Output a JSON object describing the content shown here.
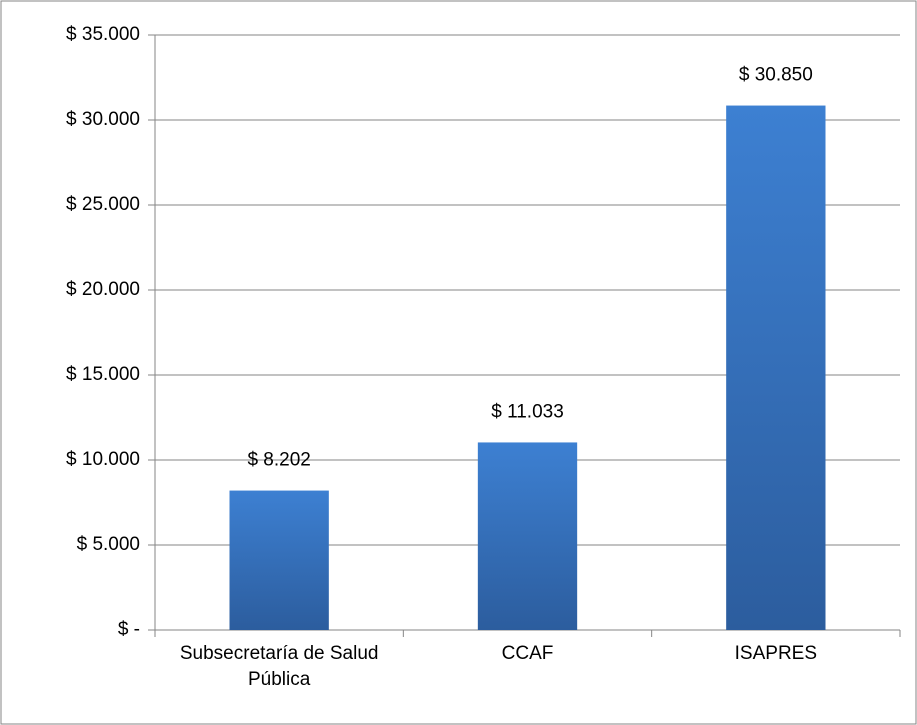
{
  "chart_data": {
    "type": "bar",
    "categories": [
      "Subsecretaría de Salud Pública",
      "CCAF",
      "ISAPRES"
    ],
    "values": [
      8202,
      11033,
      30850
    ],
    "value_labels": [
      "$ 8.202",
      "$ 11.033",
      "$ 30.850"
    ],
    "color": "#3a78c8",
    "ylim": [
      0,
      35000
    ],
    "yticks": [
      {
        "value": 0,
        "label": "$ -"
      },
      {
        "value": 5000,
        "label": "$ 5.000"
      },
      {
        "value": 10000,
        "label": "$ 10.000"
      },
      {
        "value": 15000,
        "label": "$ 15.000"
      },
      {
        "value": 20000,
        "label": "$ 20.000"
      },
      {
        "value": 25000,
        "label": "$ 25.000"
      },
      {
        "value": 30000,
        "label": "$ 30.000"
      },
      {
        "value": 35000,
        "label": "$ 35.000"
      }
    ],
    "grid": true
  }
}
